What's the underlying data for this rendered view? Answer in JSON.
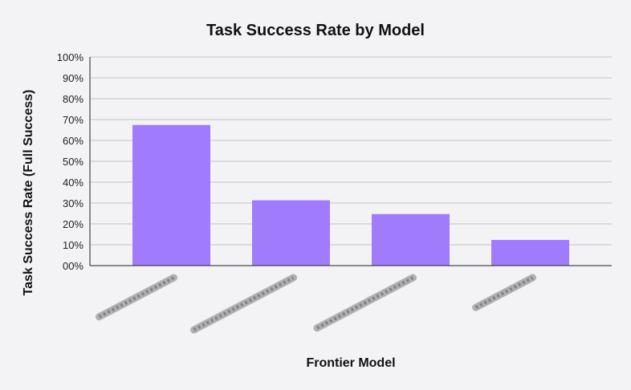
{
  "chart_data": {
    "type": "bar",
    "title": "Task Success Rate by Model",
    "xlabel": "Frontier Model",
    "ylabel": "Task Success Rate (Full Success)",
    "categories": [
      "",
      "",
      "",
      ""
    ],
    "values": [
      67.4,
      31.3,
      24.7,
      12.3
    ],
    "yticks": [
      "00%",
      "10%",
      "20%",
      "30%",
      "40%",
      "50%",
      "60%",
      "70%",
      "80%",
      "90%",
      "100%"
    ],
    "ylim": [
      0,
      100
    ],
    "grid": true,
    "bar_color": "#a07cfc",
    "note_categories": "tick labels are pixelated/redacted in the original"
  }
}
